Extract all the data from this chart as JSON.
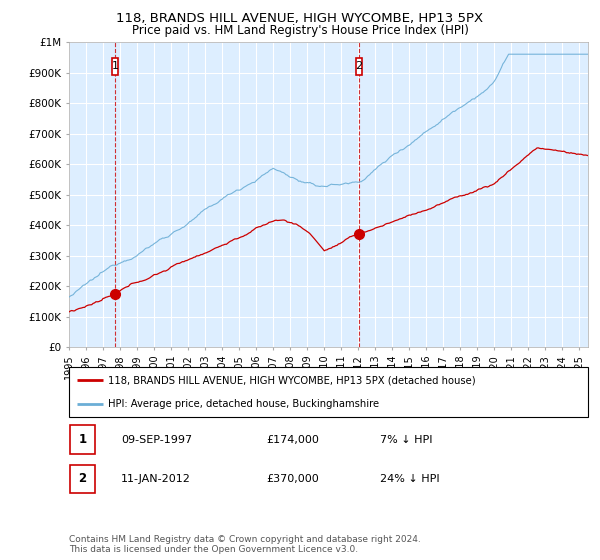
{
  "title": "118, BRANDS HILL AVENUE, HIGH WYCOMBE, HP13 5PX",
  "subtitle": "Price paid vs. HM Land Registry's House Price Index (HPI)",
  "ylim": [
    0,
    1000000
  ],
  "yticks": [
    0,
    100000,
    200000,
    300000,
    400000,
    500000,
    600000,
    700000,
    800000,
    900000,
    1000000
  ],
  "ytick_labels": [
    "£0",
    "£100K",
    "£200K",
    "£300K",
    "£400K",
    "£500K",
    "£600K",
    "£700K",
    "£800K",
    "£900K",
    "£1M"
  ],
  "hpi_color": "#6baed6",
  "price_color": "#cc0000",
  "vline_color": "#cc0000",
  "plot_bg_color": "#ddeeff",
  "background_color": "#ffffff",
  "grid_color": "#ffffff",
  "legend_line1": "118, BRANDS HILL AVENUE, HIGH WYCOMBE, HP13 5PX (detached house)",
  "legend_line2": "HPI: Average price, detached house, Buckinghamshire",
  "footnote": "Contains HM Land Registry data © Crown copyright and database right 2024.\nThis data is licensed under the Open Government Licence v3.0.",
  "table_row1": [
    "1",
    "09-SEP-1997",
    "£174,000",
    "7% ↓ HPI"
  ],
  "table_row2": [
    "2",
    "11-JAN-2012",
    "£370,000",
    "24% ↓ HPI"
  ],
  "m1_x": 1997.7,
  "m2_x": 2012.03,
  "m1_y": 174000,
  "m2_y": 370000,
  "xlim_left": 1995,
  "xlim_right": 2025.5
}
